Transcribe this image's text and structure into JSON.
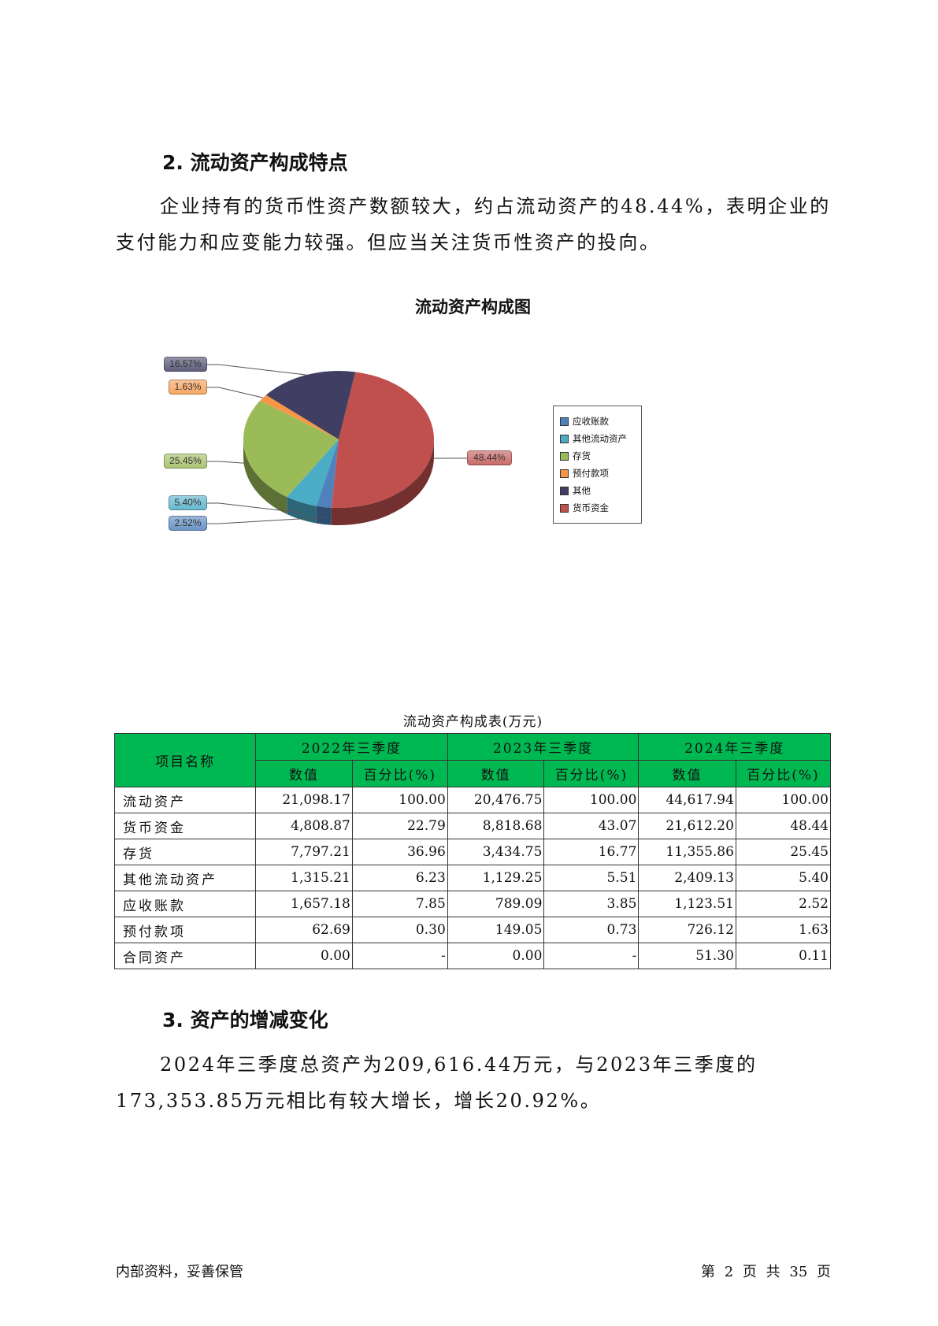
{
  "section2": {
    "heading": "2. 流动资产构成特点",
    "paragraph": "企业持有的货币性资产数额较大，约占流动资产的48.44%，表明企业的支付能力和应变能力较强。但应当关注货币性资产的投向。"
  },
  "chart_data": {
    "type": "pie",
    "title": "流动资产构成图",
    "categories": [
      "货币资金",
      "应收账款",
      "其他流动资产",
      "存货",
      "预付款项",
      "其他"
    ],
    "values": [
      48.44,
      2.52,
      5.4,
      25.45,
      1.63,
      16.57
    ],
    "labels": [
      "48.44%",
      "2.52%",
      "5.40%",
      "25.45%",
      "1.63%",
      "16.57%"
    ],
    "colors": [
      "#c0504d",
      "#4f81bd",
      "#4bacc6",
      "#9bbb59",
      "#f79646",
      "#403f63"
    ],
    "legend_placement": "right",
    "legend": [
      {
        "name": "应收账款",
        "color": "#4f81bd"
      },
      {
        "name": "其他流动资产",
        "color": "#4bacc6"
      },
      {
        "name": "存货",
        "color": "#9bbb59"
      },
      {
        "name": "预付款项",
        "color": "#f79646"
      },
      {
        "name": "其他",
        "color": "#403f63"
      },
      {
        "name": "货币资金",
        "color": "#c0504d"
      }
    ]
  },
  "table": {
    "caption": "流动资产构成表(万元)",
    "header_name": "项目名称",
    "periods": [
      "2022年三季度",
      "2023年三季度",
      "2024年三季度"
    ],
    "sub": [
      "数值",
      "百分比(%)"
    ],
    "accent": "#00b851",
    "rows": [
      [
        "流动资产",
        "21,098.17",
        "100.00",
        "20,476.75",
        "100.00",
        "44,617.94",
        "100.00"
      ],
      [
        "货币资金",
        "4,808.87",
        "22.79",
        "8,818.68",
        "43.07",
        "21,612.20",
        "48.44"
      ],
      [
        "存货",
        "7,797.21",
        "36.96",
        "3,434.75",
        "16.77",
        "11,355.86",
        "25.45"
      ],
      [
        "其他流动资产",
        "1,315.21",
        "6.23",
        "1,129.25",
        "5.51",
        "2,409.13",
        "5.40"
      ],
      [
        "应收账款",
        "1,657.18",
        "7.85",
        "789.09",
        "3.85",
        "1,123.51",
        "2.52"
      ],
      [
        "预付款项",
        "62.69",
        "0.30",
        "149.05",
        "0.73",
        "726.12",
        "1.63"
      ],
      [
        "合同资产",
        "0.00",
        "-",
        "0.00",
        "-",
        "51.30",
        "0.11"
      ]
    ]
  },
  "section3": {
    "heading": "3. 资产的增减变化",
    "paragraph": "2024年三季度总资产为209,616.44万元，与2023年三季度的173,353.85万元相比有较大增长，增长20.92%。"
  },
  "footer": {
    "left": "内部资料，妥善保管",
    "right": "第 2 页  共 35 页"
  }
}
